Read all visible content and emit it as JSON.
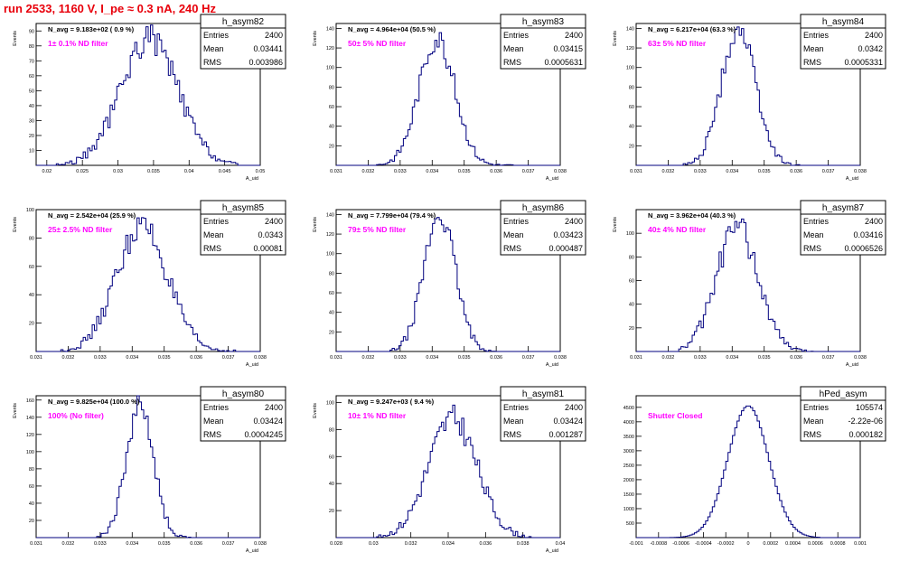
{
  "page_title": "run 2533,  1160 V, I_pe ≈ 0.3 nA, 240 Hz",
  "colors": {
    "title": "#e8000b",
    "annotation": "#ff00ff",
    "histogram": "#00007f",
    "frame": "#000000"
  },
  "chart_data": [
    {
      "type": "histogram",
      "name": "h_asym82",
      "stats": {
        "entries_label": "Entries",
        "entries": "2400",
        "mean_label": "Mean",
        "mean": "0.03441",
        "rms_label": "RMS",
        "rms": "0.003986"
      },
      "navg_text": "N_avg = 9.183e+02 ( 0.9 %)",
      "filter_text": "1± 0.1% ND filter",
      "ylabel": "Events",
      "xlabel": "A_uid",
      "xlim": [
        0.0185,
        0.05
      ],
      "ylim": [
        0,
        95
      ],
      "xticks": [
        0.02,
        0.025,
        0.03,
        0.035,
        0.04,
        0.045,
        0.05
      ],
      "xticklabels": [
        "0.02",
        "0.025",
        "0.03",
        "0.035",
        "0.04",
        "0.045",
        "0.05"
      ],
      "yticks": [
        10,
        20,
        30,
        40,
        50,
        60,
        70,
        80,
        90
      ],
      "dist": {
        "mean": 0.0344,
        "sigma": 0.004,
        "peak": 85,
        "xmin": 0.021,
        "xmax": 0.047,
        "seed": 82
      }
    },
    {
      "type": "histogram",
      "name": "h_asym83",
      "stats": {
        "entries_label": "Entries",
        "entries": "2400",
        "mean_label": "Mean",
        "mean": "0.03415",
        "rms_label": "RMS",
        "rms": "0.0005631"
      },
      "navg_text": "N_avg = 4.964e+04 (50.5 %)",
      "filter_text": "50± 5% ND filter",
      "ylabel": "Events",
      "xlabel": "A_uid",
      "xlim": [
        0.031,
        0.038
      ],
      "ylim": [
        0,
        145
      ],
      "xticks": [
        0.031,
        0.032,
        0.033,
        0.034,
        0.035,
        0.036,
        0.037,
        0.038
      ],
      "xticklabels": [
        "0.031",
        "0.032",
        "0.033",
        "0.034",
        "0.035",
        "0.036",
        "0.037",
        "0.038"
      ],
      "yticks": [
        20,
        40,
        60,
        80,
        100,
        120,
        140
      ],
      "dist": {
        "mean": 0.03415,
        "sigma": 0.00056,
        "peak": 130,
        "xmin": 0.0322,
        "xmax": 0.0365,
        "seed": 83
      }
    },
    {
      "type": "histogram",
      "name": "h_asym84",
      "stats": {
        "entries_label": "Entries",
        "entries": "2400",
        "mean_label": "Mean",
        "mean": "0.0342",
        "rms_label": "RMS",
        "rms": "0.0005331"
      },
      "navg_text": "N_avg = 6.217e+04 (63.3 %)",
      "filter_text": "63± 5% ND filter",
      "ylabel": "Events",
      "xlabel": "A_uid",
      "xlim": [
        0.031,
        0.038
      ],
      "ylim": [
        0,
        145
      ],
      "xticks": [
        0.031,
        0.032,
        0.033,
        0.034,
        0.035,
        0.036,
        0.037,
        0.038
      ],
      "xticklabels": [
        "0.031",
        "0.032",
        "0.033",
        "0.034",
        "0.035",
        "0.036",
        "0.037",
        "0.038"
      ],
      "yticks": [
        20,
        40,
        60,
        80,
        100,
        120,
        140
      ],
      "dist": {
        "mean": 0.0342,
        "sigma": 0.00053,
        "peak": 140,
        "xmin": 0.0325,
        "xmax": 0.0362,
        "seed": 84
      }
    },
    {
      "type": "histogram",
      "name": "h_asym85",
      "stats": {
        "entries_label": "Entries",
        "entries": "2400",
        "mean_label": "Mean",
        "mean": "0.0343",
        "rms_label": "RMS",
        "rms": "0.00081"
      },
      "navg_text": "N_avg = 2.542e+04 (25.9 %)",
      "filter_text": "25± 2.5% ND filter",
      "ylabel": "Events",
      "xlabel": "A_uid",
      "xlim": [
        0.031,
        0.038
      ],
      "ylim": [
        0,
        100
      ],
      "xticks": [
        0.031,
        0.032,
        0.033,
        0.034,
        0.035,
        0.036,
        0.037,
        0.038
      ],
      "xticklabels": [
        "0.031",
        "0.032",
        "0.033",
        "0.034",
        "0.035",
        "0.036",
        "0.037",
        "0.038"
      ],
      "yticks": [
        20,
        40,
        60,
        80,
        100
      ],
      "dist": {
        "mean": 0.0343,
        "sigma": 0.0008,
        "peak": 88,
        "xmin": 0.0318,
        "xmax": 0.0372,
        "seed": 85
      }
    },
    {
      "type": "histogram",
      "name": "h_asym86",
      "stats": {
        "entries_label": "Entries",
        "entries": "2400",
        "mean_label": "Mean",
        "mean": "0.03423",
        "rms_label": "RMS",
        "rms": "0.000487"
      },
      "navg_text": "N_avg = 7.799e+04 (79.4 %)",
      "filter_text": "79± 5% ND filter",
      "ylabel": "Events",
      "xlabel": "A_uid",
      "xlim": [
        0.031,
        0.038
      ],
      "ylim": [
        0,
        145
      ],
      "xticks": [
        0.031,
        0.032,
        0.033,
        0.034,
        0.035,
        0.036,
        0.037,
        0.038
      ],
      "xticklabels": [
        "0.031",
        "0.032",
        "0.033",
        "0.034",
        "0.035",
        "0.036",
        "0.037",
        "0.038"
      ],
      "yticks": [
        20,
        40,
        60,
        80,
        100,
        120,
        140
      ],
      "dist": {
        "mean": 0.03423,
        "sigma": 0.00049,
        "peak": 140,
        "xmin": 0.0327,
        "xmax": 0.036,
        "seed": 86
      }
    },
    {
      "type": "histogram",
      "name": "h_asym87",
      "stats": {
        "entries_label": "Entries",
        "entries": "2400",
        "mean_label": "Mean",
        "mean": "0.03416",
        "rms_label": "RMS",
        "rms": "0.0006526"
      },
      "navg_text": "N_avg = 3.962e+04 (40.3 %)",
      "filter_text": "40± 4% ND filter",
      "ylabel": "Events",
      "xlabel": "A_uid",
      "xlim": [
        0.031,
        0.038
      ],
      "ylim": [
        0,
        120
      ],
      "xticks": [
        0.031,
        0.032,
        0.033,
        0.034,
        0.035,
        0.036,
        0.037,
        0.038
      ],
      "xticklabels": [
        "0.031",
        "0.032",
        "0.033",
        "0.034",
        "0.035",
        "0.036",
        "0.037",
        "0.038"
      ],
      "yticks": [
        20,
        40,
        60,
        80,
        100
      ],
      "dist": {
        "mean": 0.03416,
        "sigma": 0.00065,
        "peak": 105,
        "xmin": 0.0323,
        "xmax": 0.0367,
        "seed": 87
      }
    },
    {
      "type": "histogram",
      "name": "h_asym80",
      "stats": {
        "entries_label": "Entries",
        "entries": "2400",
        "mean_label": "Mean",
        "mean": "0.03424",
        "rms_label": "RMS",
        "rms": "0.0004245"
      },
      "navg_text": "N_avg = 9.825e+04 (100.0 %)",
      "filter_text": "100% (No filter)",
      "ylabel": "Events",
      "xlabel": "A_uid",
      "xlim": [
        0.031,
        0.038
      ],
      "ylim": [
        0,
        165
      ],
      "xticks": [
        0.031,
        0.032,
        0.033,
        0.034,
        0.035,
        0.036,
        0.037,
        0.038
      ],
      "xticklabels": [
        "0.031",
        "0.032",
        "0.033",
        "0.034",
        "0.035",
        "0.036",
        "0.037",
        "0.038"
      ],
      "yticks": [
        20,
        40,
        60,
        80,
        100,
        120,
        140,
        160
      ],
      "dist": {
        "mean": 0.03424,
        "sigma": 0.00042,
        "peak": 155,
        "xmin": 0.0329,
        "xmax": 0.0358,
        "seed": 80
      }
    },
    {
      "type": "histogram",
      "name": "h_asym81",
      "stats": {
        "entries_label": "Entries",
        "entries": "2400",
        "mean_label": "Mean",
        "mean": "0.03424",
        "rms_label": "RMS",
        "rms": "0.001287"
      },
      "navg_text": "N_avg = 9.247e+03 ( 9.4 %)",
      "filter_text": "10± 1% ND filter",
      "ylabel": "Events",
      "xlabel": "A_uid",
      "xlim": [
        0.028,
        0.04
      ],
      "ylim": [
        0,
        105
      ],
      "xticks": [
        0.028,
        0.03,
        0.032,
        0.034,
        0.036,
        0.038,
        0.04
      ],
      "xticklabels": [
        "0.028",
        "0.03",
        "0.032",
        "0.034",
        "0.036",
        "0.038",
        "0.04"
      ],
      "yticks": [
        20,
        40,
        60,
        80,
        100
      ],
      "dist": {
        "mean": 0.03424,
        "sigma": 0.0013,
        "peak": 88,
        "xmin": 0.0302,
        "xmax": 0.0385,
        "seed": 81
      }
    },
    {
      "type": "histogram",
      "name": "hPed_asym",
      "stats": {
        "entries_label": "Entries",
        "entries": "105574",
        "mean_label": "Mean",
        "mean": "-2.22e-06",
        "rms_label": "RMS",
        "rms": "0.000182"
      },
      "navg_text": "",
      "filter_text": "Shutter Closed",
      "ylabel": "",
      "xlabel": "",
      "xlim": [
        -0.001,
        0.001
      ],
      "ylim": [
        0,
        4900
      ],
      "xticks": [
        -0.001,
        -0.0008,
        -0.0006,
        -0.0004,
        -0.0002,
        0,
        0.0002,
        0.0004,
        0.0006,
        0.0008,
        0.001
      ],
      "xticklabels": [
        "-0.001",
        "-0.0008",
        "-0.0006",
        "-0.0004",
        "-0.0002",
        "0",
        "0.0002",
        "0.0004",
        "0.0006",
        "0.0008",
        "0.001"
      ],
      "yticks": [
        500,
        1000,
        1500,
        2000,
        2500,
        3000,
        3500,
        4000,
        4500
      ],
      "dist": {
        "mean": 0.0,
        "sigma": 0.000182,
        "peak": 4550,
        "xmin": -0.0007,
        "xmax": 0.00065,
        "seed": 7,
        "smooth": true
      }
    }
  ]
}
